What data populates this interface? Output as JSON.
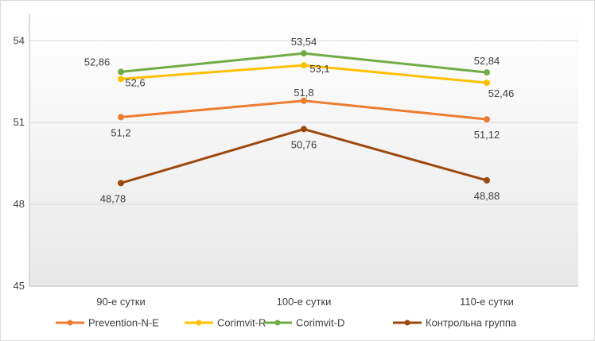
{
  "chart_data": {
    "type": "line",
    "title": "",
    "xlabel": "",
    "ylabel": "",
    "categories": [
      "90-е сутки",
      "100-е сутки",
      "110-е сутки"
    ],
    "ylim": [
      45,
      55
    ],
    "yticks": [
      "45",
      "48",
      "51",
      "54"
    ],
    "grid": true,
    "legend_position": "bottom",
    "series": [
      {
        "name": "Prevention-N-E",
        "color": "#ed7d31",
        "values": [
          51.2,
          51.8,
          51.12
        ],
        "labels": [
          "51,2",
          "51,8",
          "51,12"
        ]
      },
      {
        "name": "Corimvit-R",
        "color": "#ffc000",
        "values": [
          52.6,
          53.1,
          52.46
        ],
        "labels": [
          "52,6",
          "53,1",
          "52,46"
        ]
      },
      {
        "name": "Corimvit-D",
        "color": "#70ad47",
        "values": [
          52.86,
          53.54,
          52.84
        ],
        "labels": [
          "52,86",
          "53,54",
          "52,84"
        ]
      },
      {
        "name": "Контрольна группа",
        "color": "#9e480e",
        "values": [
          48.78,
          50.76,
          48.88
        ],
        "labels": [
          "48,78",
          "50,76",
          "48,88"
        ]
      }
    ]
  }
}
